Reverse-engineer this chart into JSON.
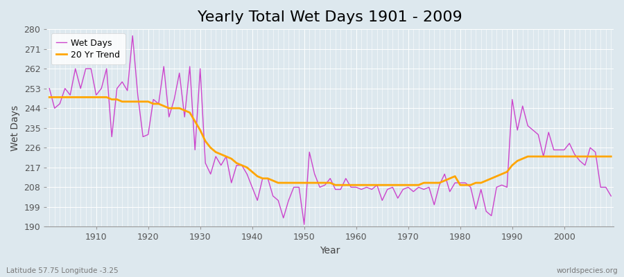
{
  "title": "Yearly Total Wet Days 1901 - 2009",
  "xlabel": "Year",
  "ylabel": "Wet Days",
  "footnote_left": "Latitude 57.75 Longitude -3.25",
  "footnote_right": "worldspecies.org",
  "years": [
    1901,
    1902,
    1903,
    1904,
    1905,
    1906,
    1907,
    1908,
    1909,
    1910,
    1911,
    1912,
    1913,
    1914,
    1915,
    1916,
    1917,
    1918,
    1919,
    1920,
    1921,
    1922,
    1923,
    1924,
    1925,
    1926,
    1927,
    1928,
    1929,
    1930,
    1931,
    1932,
    1933,
    1934,
    1935,
    1936,
    1937,
    1938,
    1939,
    1940,
    1941,
    1942,
    1943,
    1944,
    1945,
    1946,
    1947,
    1948,
    1949,
    1950,
    1951,
    1952,
    1953,
    1954,
    1955,
    1956,
    1957,
    1958,
    1959,
    1960,
    1961,
    1962,
    1963,
    1964,
    1965,
    1966,
    1967,
    1968,
    1969,
    1970,
    1971,
    1972,
    1973,
    1974,
    1975,
    1976,
    1977,
    1978,
    1979,
    1980,
    1981,
    1982,
    1983,
    1984,
    1985,
    1986,
    1987,
    1988,
    1989,
    1990,
    1991,
    1992,
    1993,
    1994,
    1995,
    1996,
    1997,
    1998,
    1999,
    2000,
    2001,
    2002,
    2003,
    2004,
    2005,
    2006,
    2007,
    2008,
    2009
  ],
  "wet_days": [
    253,
    244,
    246,
    253,
    250,
    262,
    253,
    262,
    262,
    250,
    253,
    262,
    231,
    253,
    256,
    252,
    277,
    250,
    231,
    232,
    248,
    246,
    263,
    240,
    248,
    260,
    240,
    263,
    225,
    262,
    219,
    214,
    222,
    218,
    222,
    210,
    218,
    218,
    214,
    208,
    202,
    212,
    212,
    204,
    202,
    194,
    202,
    208,
    208,
    191,
    224,
    214,
    208,
    209,
    212,
    207,
    207,
    212,
    208,
    208,
    207,
    208,
    207,
    209,
    202,
    207,
    208,
    203,
    207,
    208,
    206,
    208,
    207,
    208,
    200,
    209,
    214,
    206,
    210,
    210,
    210,
    208,
    198,
    207,
    197,
    195,
    208,
    209,
    208,
    248,
    234,
    245,
    236,
    234,
    232,
    222,
    233,
    225,
    225,
    225,
    228,
    223,
    220,
    218,
    226,
    224,
    208,
    208,
    204
  ],
  "trend": [
    249,
    249,
    249,
    249,
    249,
    249,
    249,
    249,
    249,
    249,
    249,
    249,
    248,
    248,
    247,
    247,
    247,
    247,
    247,
    247,
    246,
    246,
    245,
    244,
    244,
    244,
    243,
    242,
    238,
    234,
    229,
    226,
    224,
    223,
    222,
    221,
    219,
    218,
    217,
    215,
    213,
    212,
    212,
    211,
    210,
    210,
    210,
    210,
    210,
    210,
    210,
    210,
    210,
    210,
    210,
    209,
    209,
    209,
    209,
    209,
    209,
    209,
    209,
    209,
    209,
    209,
    209,
    209,
    209,
    209,
    209,
    209,
    210,
    210,
    210,
    210,
    211,
    212,
    213,
    209,
    209,
    209,
    210,
    210,
    211,
    212,
    213,
    214,
    215,
    218,
    220,
    221,
    222,
    222,
    222,
    222,
    222,
    222,
    222,
    222,
    222,
    222,
    222,
    222,
    222,
    222,
    222,
    222,
    222
  ],
  "wet_days_color": "#cc44cc",
  "trend_color": "#FFA500",
  "plot_bg_color": "#dde8ee",
  "fig_bg_color": "#dde8ee",
  "grid_color": "#ffffff",
  "ylim": [
    190,
    280
  ],
  "yticks": [
    190,
    199,
    208,
    217,
    226,
    235,
    244,
    253,
    262,
    271,
    280
  ],
  "xlim_start": 1901,
  "xlim_end": 2009,
  "title_fontsize": 16,
  "axis_fontsize": 10,
  "tick_fontsize": 9,
  "legend_fontsize": 9
}
